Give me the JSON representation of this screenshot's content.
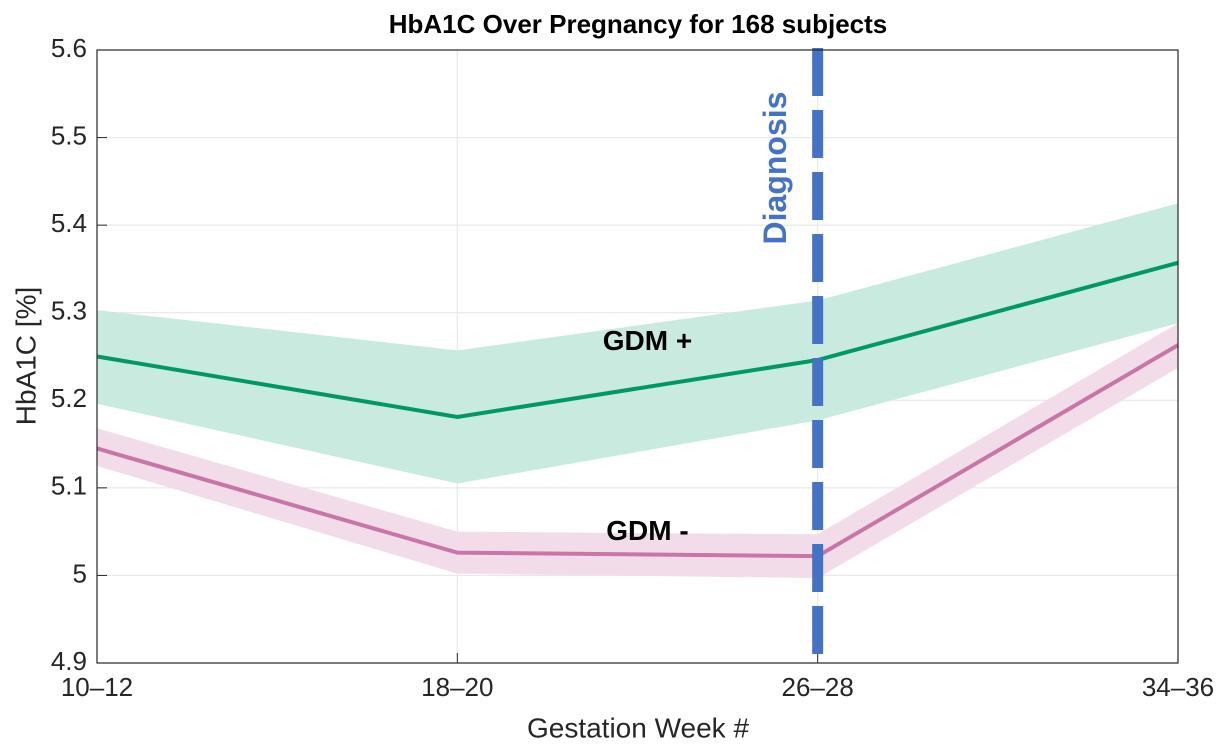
{
  "chart_data": {
    "type": "line",
    "title": "HbA1C Over Pregnancy for 168 subjects",
    "xlabel": "Gestation Week #",
    "ylabel": "HbA1C [%]",
    "categories": [
      "10–12",
      "18–20",
      "26–28",
      "34–36"
    ],
    "series": [
      {
        "name": "GDM +",
        "color": "#009966",
        "band_color": "#c9eadf",
        "values": [
          5.25,
          5.181,
          5.246,
          5.357
        ],
        "upper": [
          5.303,
          5.257,
          5.314,
          5.425
        ],
        "lower": [
          5.196,
          5.105,
          5.177,
          5.288
        ]
      },
      {
        "name": "GDM -",
        "color": "#c875a8",
        "band_color": "#f2dcea",
        "values": [
          5.145,
          5.026,
          5.022,
          5.263
        ],
        "upper": [
          5.168,
          5.05,
          5.047,
          5.288
        ],
        "lower": [
          5.125,
          5.002,
          4.997,
          5.237
        ]
      }
    ],
    "annotations": [
      {
        "text": "Diagnosis",
        "x": "26–28",
        "color": "#4472c4"
      }
    ],
    "ylim": [
      4.9,
      5.6
    ],
    "yticks": [
      4.9,
      5,
      5.1,
      5.2,
      5.3,
      5.4,
      5.5,
      5.6
    ],
    "grid": true
  }
}
